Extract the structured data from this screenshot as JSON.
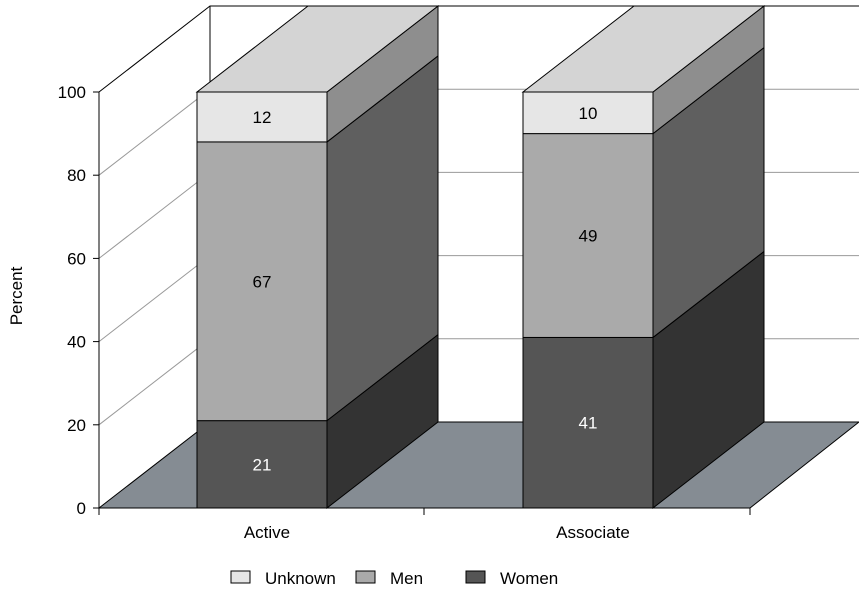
{
  "chart_data": {
    "type": "bar",
    "stacked": true,
    "three_d": true,
    "title": "",
    "xlabel": "",
    "ylabel": "Percent",
    "ylim": [
      0,
      100
    ],
    "yticks": [
      "0",
      "20",
      "40",
      "60",
      "80",
      "100"
    ],
    "categories": [
      "Active",
      "Associate"
    ],
    "series": [
      {
        "name": "Women",
        "values": [
          21,
          41
        ],
        "color": "#555555",
        "label_color": "#ffffff"
      },
      {
        "name": "Men",
        "values": [
          67,
          49
        ],
        "color": "#aaaaaa",
        "label_color": "#000000"
      },
      {
        "name": "Unknown",
        "values": [
          12,
          10
        ],
        "color": "#e6e6e6",
        "label_color": "#000000"
      }
    ],
    "legend": {
      "position": "bottom",
      "order": [
        "Unknown",
        "Men",
        "Women"
      ]
    },
    "grid": true
  }
}
